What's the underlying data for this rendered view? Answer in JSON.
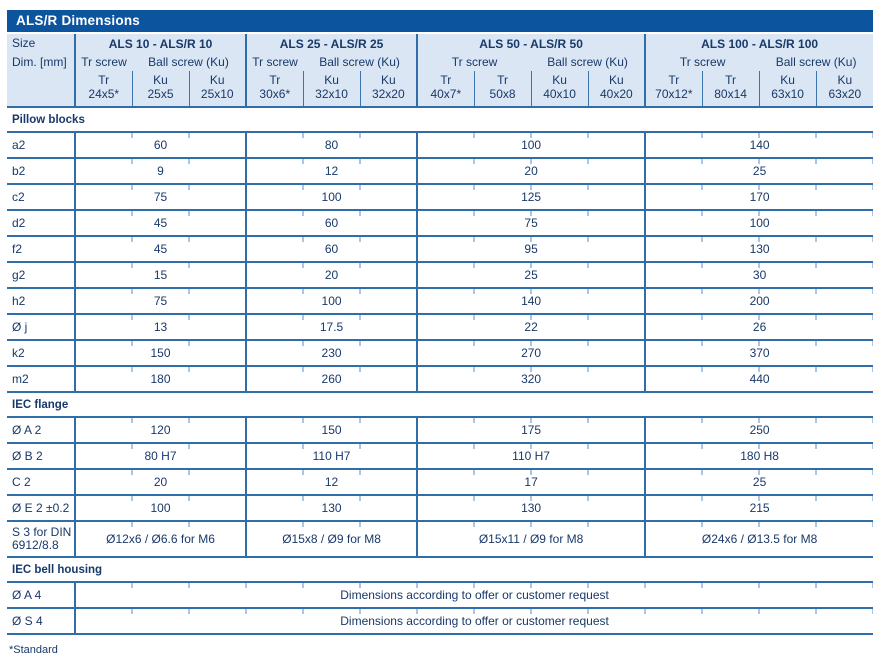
{
  "title": "ALS/R Dimensions",
  "corner": {
    "line1": "Size",
    "line2": "Dim. [mm]"
  },
  "groups": [
    {
      "name": "ALS 10 - ALS/R 10",
      "tr_label": "Tr screw",
      "ball_label": "Ball screw (Ku)",
      "columns": [
        {
          "head": "Tr",
          "size": "24x5*"
        },
        {
          "head": "Ku",
          "size": "25x5"
        },
        {
          "head": "Ku",
          "size": "25x10"
        }
      ]
    },
    {
      "name": "ALS 25 - ALS/R 25",
      "tr_label": "Tr screw",
      "ball_label": "Ball screw (Ku)",
      "columns": [
        {
          "head": "Tr",
          "size": "30x6*"
        },
        {
          "head": "Ku",
          "size": "32x10"
        },
        {
          "head": "Ku",
          "size": "32x20"
        }
      ]
    },
    {
      "name": "ALS 50 - ALS/R 50",
      "tr_label": "Tr screw",
      "ball_label": "Ball screw (Ku)",
      "columns": [
        {
          "head": "Tr",
          "size": "40x7*"
        },
        {
          "head": "Tr",
          "size": "50x8"
        },
        {
          "head": "Ku",
          "size": "40x10"
        },
        {
          "head": "Ku",
          "size": "40x20"
        }
      ]
    },
    {
      "name": "ALS 100 - ALS/R 100",
      "tr_label": "Tr screw",
      "ball_label": "Ball screw (Ku)",
      "columns": [
        {
          "head": "Tr",
          "size": "70x12*"
        },
        {
          "head": "Tr",
          "size": "80x14"
        },
        {
          "head": "Ku",
          "size": "63x10"
        },
        {
          "head": "Ku",
          "size": "63x20"
        }
      ]
    }
  ],
  "sections": [
    {
      "label": "Pillow blocks",
      "rows": [
        {
          "dim": "a2",
          "values": [
            "60",
            "80",
            "100",
            "140"
          ]
        },
        {
          "dim": "b2",
          "values": [
            "9",
            "12",
            "20",
            "25"
          ]
        },
        {
          "dim": "c2",
          "values": [
            "75",
            "100",
            "125",
            "170"
          ]
        },
        {
          "dim": "d2",
          "values": [
            "45",
            "60",
            "75",
            "100"
          ]
        },
        {
          "dim": "f2",
          "values": [
            "45",
            "60",
            "95",
            "130"
          ]
        },
        {
          "dim": "g2",
          "values": [
            "15",
            "20",
            "25",
            "30"
          ]
        },
        {
          "dim": "h2",
          "values": [
            "75",
            "100",
            "140",
            "200"
          ]
        },
        {
          "dim": "Ø j",
          "values": [
            "13",
            "17.5",
            "22",
            "26"
          ]
        },
        {
          "dim": "k2",
          "values": [
            "150",
            "230",
            "270",
            "370"
          ]
        },
        {
          "dim": "m2",
          "values": [
            "180",
            "260",
            "320",
            "440"
          ]
        }
      ]
    },
    {
      "label": "IEC flange",
      "rows": [
        {
          "dim": "Ø A 2",
          "values": [
            "120",
            "150",
            "175",
            "250"
          ]
        },
        {
          "dim": "Ø B 2",
          "values": [
            "80 H7",
            "110 H7",
            "110 H7",
            "180 H8"
          ]
        },
        {
          "dim": "C 2",
          "values": [
            "20",
            "12",
            "17",
            "25"
          ]
        },
        {
          "dim": "Ø E 2 ±0.2",
          "values": [
            "100",
            "130",
            "130",
            "215"
          ]
        },
        {
          "dim": "S 3 for DIN 6912/8.8",
          "tall": true,
          "values": [
            "Ø12x6 / Ø6.6 for M6",
            "Ø15x8 / Ø9 for M8",
            "Ø15x11 / Ø9 for M8",
            "Ø24x6 / Ø13.5 for M8"
          ]
        }
      ]
    },
    {
      "label": "IEC bell housing",
      "rows": [
        {
          "dim": "Ø A 4",
          "span_value": "Dimensions according to offer or customer request"
        },
        {
          "dim": "Ø S 4",
          "span_value": "Dimensions according to offer or customer request"
        }
      ]
    }
  ],
  "footnote": "*Standard",
  "colors": {
    "title_bar": "#0d549f",
    "header_bg": "#dae6f3",
    "text_dark": "#18396a",
    "grid_line": "#2f6ea9",
    "tick_light": "#a9c7e3"
  }
}
